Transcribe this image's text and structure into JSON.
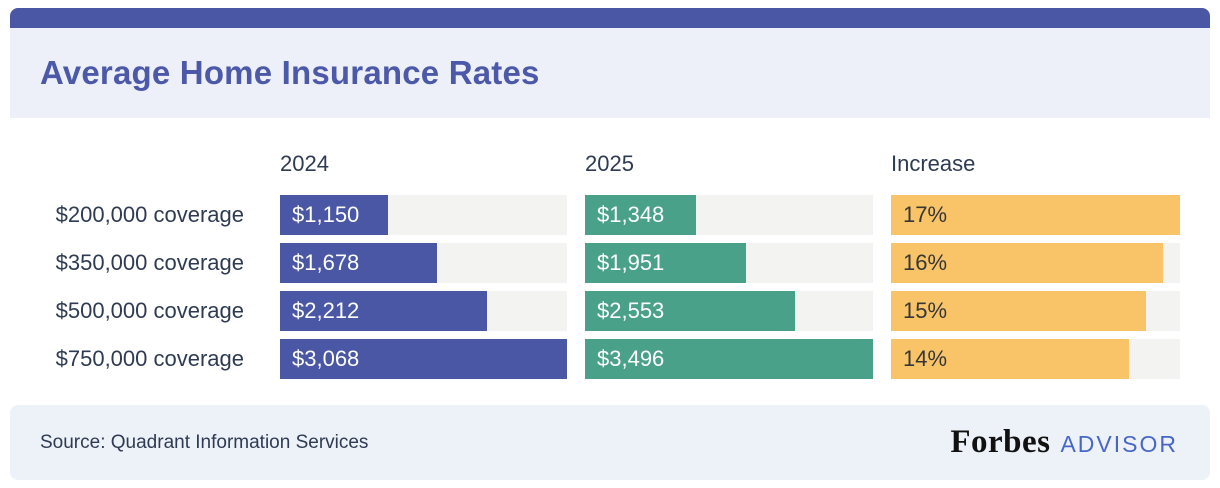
{
  "header": {
    "title": "Average Home Insurance Rates",
    "accent_color": "#4a57a4",
    "panel_color": "#edf0f8",
    "title_color": "#4b59a8"
  },
  "chart_data": {
    "type": "bar",
    "title": "Average Home Insurance Rates",
    "orientation": "horizontal",
    "grid": false,
    "legend_position": "none",
    "track_color": "#f3f3f2",
    "categories": [
      "$200,000 coverage",
      "$350,000 coverage",
      "$500,000 coverage",
      "$750,000 coverage"
    ],
    "columns": [
      {
        "header": "2024",
        "color": "#4a57a4",
        "text_color": "#ffffff",
        "values": [
          1150,
          1678,
          2212,
          3068
        ],
        "labels": [
          "$1,150",
          "$1,678",
          "$2,212",
          "$3,068"
        ],
        "scale_max": 3068
      },
      {
        "header": "2025",
        "color": "#4aa189",
        "text_color": "#ffffff",
        "values": [
          1348,
          1951,
          2553,
          3496
        ],
        "labels": [
          "$1,348",
          "$1,951",
          "$2,553",
          "$3,496"
        ],
        "scale_max": 3496
      },
      {
        "header": "Increase",
        "color": "#f9c468",
        "text_color": "#363636",
        "values": [
          17,
          16,
          15,
          14
        ],
        "labels": [
          "17%",
          "16%",
          "15%",
          "14%"
        ],
        "scale_max": 17
      }
    ]
  },
  "footer": {
    "source": "Source: Quadrant Information Services",
    "panel_color": "#edf1f8",
    "logo_primary": "Forbes",
    "logo_secondary": "ADVISOR",
    "logo_secondary_color": "#4767c8"
  }
}
